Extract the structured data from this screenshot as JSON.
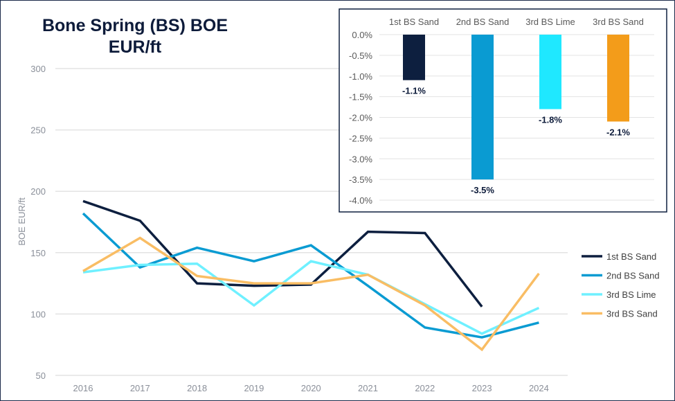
{
  "chart_data": [
    {
      "type": "line",
      "title": "Bone Spring (BS) BOE EUR/ft",
      "xlabel": "",
      "ylabel": "BOE EUR/ft",
      "ylim": [
        50,
        300
      ],
      "yticks": [
        "50",
        "100",
        "150",
        "200",
        "250",
        "300"
      ],
      "categories": [
        "2016",
        "2017",
        "2018",
        "2019",
        "2020",
        "2021",
        "2022",
        "2023",
        "2024"
      ],
      "grid": true,
      "legend": "right",
      "series": [
        {
          "name": "1st BS Sand",
          "color": "#0d1f3f",
          "values": [
            192,
            176,
            125,
            123,
            124,
            167,
            166,
            106,
            null
          ]
        },
        {
          "name": "2nd BS Sand",
          "color": "#0a9bd2",
          "values": [
            182,
            138,
            154,
            143,
            156,
            123,
            89,
            81,
            93
          ]
        },
        {
          "name": "3rd BS Lime",
          "color": "#6ff0ff",
          "values": [
            134,
            140,
            141,
            107,
            143,
            132,
            108,
            84,
            105
          ]
        },
        {
          "name": "3rd BS Sand",
          "color": "#f9bd64",
          "values": [
            135,
            162,
            131,
            125,
            125,
            132,
            107,
            71,
            133
          ]
        }
      ]
    },
    {
      "type": "bar",
      "categories": [
        "1st BS Sand",
        "2nd BS Sand",
        "3rd BS Lime",
        "3rd BS Sand"
      ],
      "values": [
        -1.1,
        -3.5,
        -1.8,
        -2.1
      ],
      "data_labels": [
        "-1.1%",
        "-3.5%",
        "-1.8%",
        "-2.1%"
      ],
      "colors": [
        "#0d1f3f",
        "#0a9bd2",
        "#1fe8ff",
        "#f39c1a"
      ],
      "ylim": [
        -4.0,
        0.0
      ],
      "yticks": [
        "0.0%",
        "-0.5%",
        "-1.0%",
        "-1.5%",
        "-2.0%",
        "-2.5%",
        "-3.0%",
        "-3.5%",
        "-4.0%"
      ],
      "grid": true
    }
  ]
}
